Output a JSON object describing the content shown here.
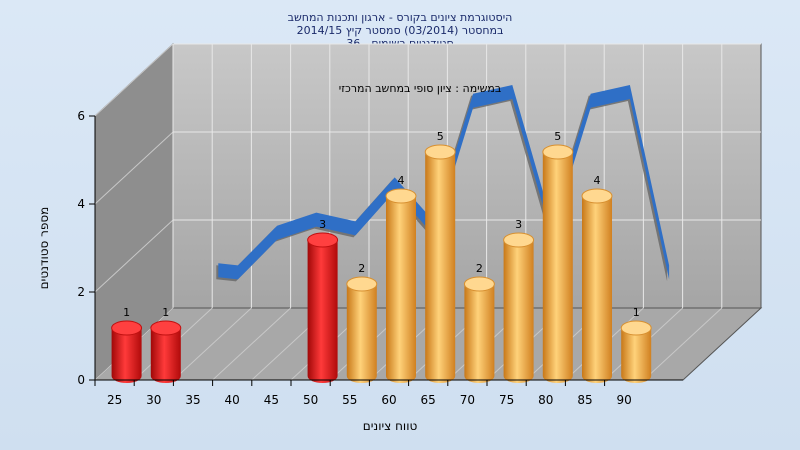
{
  "chart_data": {
    "type": "bar",
    "title_lines": [
      "היסטוגרמת ציונים בקורס - ארגון ותכנות המחשב",
      "במחסטר  (03/2014)  סמסטר קיץ 2014/15",
      "סטודנטים רשומים - 36"
    ],
    "subtitle": "במשימה : ציון סופי במחשב המרכזי",
    "xlabel": "טווח ציונים",
    "ylabel": "מספר סטודנטים",
    "ylim": [
      0,
      6
    ],
    "y_ticks": [
      0,
      2,
      4,
      6
    ],
    "x_ticks": [
      25,
      30,
      35,
      40,
      45,
      50,
      55,
      60,
      65,
      70,
      75,
      80,
      85,
      90
    ],
    "categories": [
      25,
      30,
      50,
      55,
      60,
      65,
      70,
      75,
      80,
      85,
      90
    ],
    "values": [
      1,
      1,
      3,
      2,
      4,
      5,
      2,
      3,
      5,
      4,
      1
    ],
    "bar_colors": [
      "red",
      "red",
      "red",
      "orange",
      "orange",
      "orange",
      "orange",
      "orange",
      "orange",
      "orange",
      "orange"
    ],
    "trend_line": {
      "x": [
        32.5,
        35,
        40,
        45,
        50,
        55,
        60,
        65,
        70,
        75,
        80,
        85,
        90
      ],
      "y": [
        1.55,
        1.5,
        2.4,
        2.7,
        2.5,
        3.5,
        2.5,
        5.4,
        5.6,
        2.5,
        5.4,
        5.6,
        1.5
      ]
    },
    "colors": {
      "red": "#e01818",
      "orange": "#f0a030",
      "trend": "#2f6fc6",
      "trend_shadow": "#6a6a6a",
      "back_wall": "#b5b5b5",
      "side_wall": "#8a8a8a",
      "floor": "#a9a9a9"
    },
    "grid": true
  }
}
